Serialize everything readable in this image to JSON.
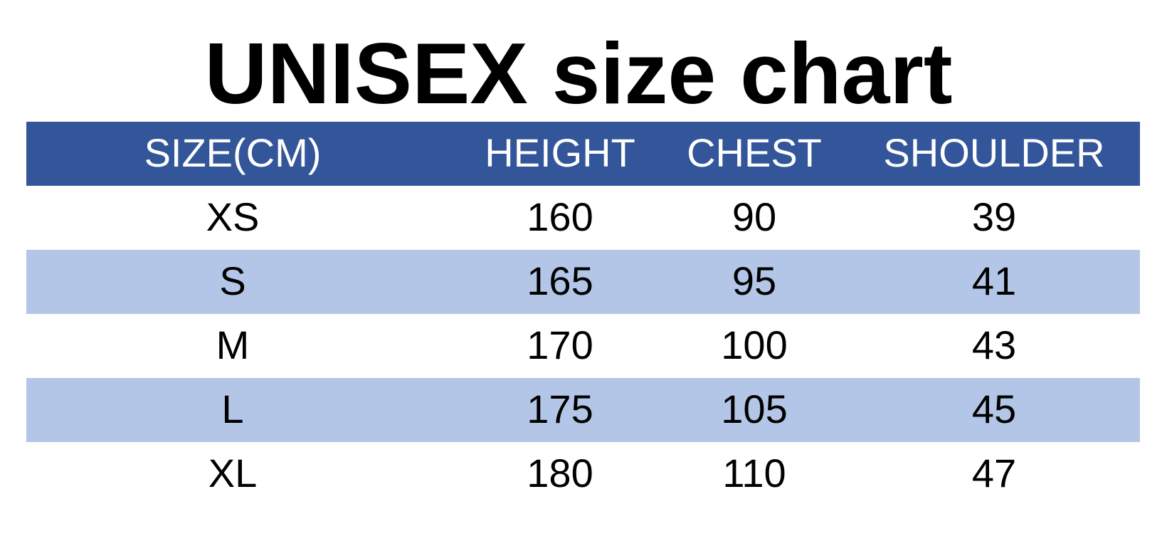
{
  "title": "UNISEX size chart",
  "table": {
    "header": [
      "SIZE(CM)",
      "HEIGHT",
      "CHEST",
      "SHOULDER"
    ],
    "rows": [
      [
        "XS",
        160,
        90,
        39
      ],
      [
        "S",
        165,
        95,
        41
      ],
      [
        "M",
        170,
        100,
        43
      ],
      [
        "L",
        175,
        105,
        45
      ],
      [
        "XL",
        180,
        110,
        47
      ]
    ]
  }
}
